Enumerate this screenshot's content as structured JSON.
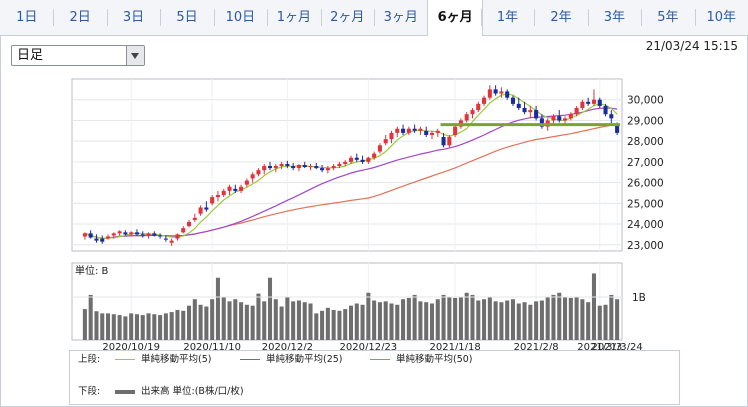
{
  "tabs": [
    "1日",
    "2日",
    "3日",
    "5日",
    "10日",
    "1ヶ月",
    "2ヶ月",
    "3ヶ月",
    "6ヶ月",
    "1年",
    "2年",
    "3年",
    "5年",
    "10年"
  ],
  "active_tab": "6ヶ月",
  "period_select": {
    "value": "日足"
  },
  "datetime": "21/03/24 15:15",
  "colors": {
    "up": "#e0333a",
    "down": "#1b2a9c",
    "ma5": "#9acc3a",
    "ma25": "#a046c8",
    "ma50": "#e3725b",
    "volume": "#6e6e6e",
    "hline": "#7aa52c"
  },
  "chart_data": {
    "type": "candlestick",
    "price_axis": {
      "ylim": [
        22700,
        31000
      ],
      "ticks": [
        "23,000",
        "24,000",
        "25,000",
        "26,000",
        "27,000",
        "28,000",
        "29,000",
        "30,000"
      ],
      "tick_values": [
        23000,
        24000,
        25000,
        26000,
        27000,
        28000,
        29000,
        30000
      ]
    },
    "volume_axis": {
      "label": "単位: B",
      "tick": "1B",
      "tick_value": 1
    },
    "x_labels": [
      "2020/10/19",
      "2020/11/10",
      "2020/12/2",
      "2020/12/23",
      "2021/1/18",
      "2021/2/8",
      "2021/3/3",
      "2021/3/24"
    ],
    "ohlc": [
      [
        23400,
        23600,
        23250,
        23550
      ],
      [
        23550,
        23700,
        23300,
        23350
      ],
      [
        23300,
        23500,
        23100,
        23200
      ],
      [
        23300,
        23450,
        23050,
        23150
      ],
      [
        23300,
        23500,
        23250,
        23400
      ],
      [
        23450,
        23600,
        23300,
        23550
      ],
      [
        23550,
        23700,
        23450,
        23650
      ],
      [
        23600,
        23700,
        23450,
        23500
      ],
      [
        23500,
        23650,
        23400,
        23600
      ],
      [
        23600,
        23750,
        23450,
        23500
      ],
      [
        23500,
        23650,
        23350,
        23450
      ],
      [
        23450,
        23600,
        23300,
        23550
      ],
      [
        23550,
        23650,
        23400,
        23450
      ],
      [
        23450,
        23550,
        23300,
        23400
      ],
      [
        23300,
        23450,
        23150,
        23250
      ],
      [
        23100,
        23300,
        22950,
        23200
      ],
      [
        23300,
        23550,
        23200,
        23500
      ],
      [
        23600,
        23900,
        23550,
        23800
      ],
      [
        23900,
        24200,
        23850,
        24100
      ],
      [
        24200,
        24500,
        24100,
        24300
      ],
      [
        24500,
        24900,
        24400,
        24800
      ],
      [
        24800,
        25100,
        24600,
        24700
      ],
      [
        25000,
        25400,
        24900,
        25300
      ],
      [
        25300,
        25600,
        25100,
        25400
      ],
      [
        25400,
        25700,
        25300,
        25600
      ],
      [
        25600,
        25900,
        25400,
        25800
      ],
      [
        25700,
        25900,
        25500,
        25600
      ],
      [
        25600,
        25900,
        25500,
        25800
      ],
      [
        25900,
        26200,
        25800,
        26100
      ],
      [
        26200,
        26500,
        26000,
        26400
      ],
      [
        26400,
        26700,
        26300,
        26600
      ],
      [
        26600,
        26900,
        26400,
        26800
      ],
      [
        26800,
        27000,
        26600,
        26700
      ],
      [
        26700,
        26900,
        26500,
        26800
      ],
      [
        26800,
        27000,
        26650,
        26900
      ],
      [
        26900,
        27050,
        26700,
        26800
      ],
      [
        26800,
        26950,
        26600,
        26700
      ],
      [
        26700,
        26900,
        26550,
        26850
      ],
      [
        26850,
        27000,
        26700,
        26750
      ],
      [
        26750,
        26900,
        26600,
        26800
      ],
      [
        26800,
        26950,
        26650,
        26700
      ],
      [
        26700,
        26850,
        26500,
        26600
      ],
      [
        26600,
        26800,
        26450,
        26700
      ],
      [
        26700,
        26900,
        26600,
        26800
      ],
      [
        26800,
        27000,
        26700,
        26900
      ],
      [
        26900,
        27100,
        26800,
        27000
      ],
      [
        27000,
        27300,
        26900,
        27200
      ],
      [
        27200,
        27400,
        27000,
        27100
      ],
      [
        27100,
        27300,
        26900,
        27000
      ],
      [
        27000,
        27250,
        26900,
        27200
      ],
      [
        27200,
        27500,
        27100,
        27400
      ],
      [
        27500,
        27900,
        27400,
        27800
      ],
      [
        27900,
        28300,
        27800,
        28100
      ],
      [
        28100,
        28500,
        27900,
        28400
      ],
      [
        28400,
        28700,
        28200,
        28600
      ],
      [
        28600,
        28800,
        28300,
        28400
      ],
      [
        28400,
        28700,
        28300,
        28600
      ],
      [
        28600,
        28800,
        28400,
        28500
      ],
      [
        28500,
        28700,
        28300,
        28600
      ],
      [
        28500,
        28700,
        28200,
        28300
      ],
      [
        28300,
        28500,
        28100,
        28400
      ],
      [
        28400,
        28600,
        28200,
        28500
      ],
      [
        28200,
        28400,
        27700,
        27800
      ],
      [
        27800,
        28300,
        27700,
        28200
      ],
      [
        28300,
        28800,
        28200,
        28700
      ],
      [
        28700,
        29100,
        28600,
        29000
      ],
      [
        29000,
        29400,
        28900,
        29300
      ],
      [
        29300,
        29600,
        29100,
        29500
      ],
      [
        29500,
        29900,
        29400,
        29800
      ],
      [
        29800,
        30200,
        29700,
        30100
      ],
      [
        30100,
        30700,
        30000,
        30500
      ],
      [
        30500,
        30700,
        30200,
        30300
      ],
      [
        30300,
        30600,
        30100,
        30400
      ],
      [
        30400,
        30500,
        30000,
        30100
      ],
      [
        30100,
        30200,
        29700,
        29800
      ],
      [
        29800,
        30100,
        29500,
        29600
      ],
      [
        29600,
        29900,
        29300,
        29400
      ],
      [
        29400,
        29700,
        29100,
        29500
      ],
      [
        29500,
        29700,
        29000,
        29100
      ],
      [
        29100,
        29300,
        28600,
        28700
      ],
      [
        28700,
        29100,
        28500,
        29000
      ],
      [
        29000,
        29300,
        28800,
        29200
      ],
      [
        29200,
        29500,
        28900,
        29000
      ],
      [
        29000,
        29200,
        28800,
        29100
      ],
      [
        29100,
        29400,
        29000,
        29300
      ],
      [
        29300,
        29700,
        29200,
        29600
      ],
      [
        29600,
        30000,
        29500,
        29900
      ],
      [
        29900,
        30100,
        29700,
        29800
      ],
      [
        29800,
        30500,
        29700,
        30000
      ],
      [
        30000,
        30100,
        29600,
        29700
      ],
      [
        29700,
        29800,
        29200,
        29300
      ],
      [
        29300,
        29500,
        28800,
        29100
      ],
      [
        28800,
        28900,
        28300,
        28400
      ]
    ],
    "volume": [
      0.72,
      1.05,
      0.67,
      0.62,
      0.62,
      0.6,
      0.58,
      0.55,
      0.62,
      0.6,
      0.58,
      0.62,
      0.6,
      0.58,
      0.62,
      0.65,
      0.7,
      0.68,
      0.8,
      0.95,
      0.82,
      0.78,
      0.95,
      1.45,
      1.0,
      0.9,
      0.95,
      0.88,
      0.82,
      0.8,
      1.08,
      0.9,
      1.45,
      0.95,
      0.78,
      1.0,
      0.9,
      0.92,
      0.88,
      0.85,
      0.62,
      0.68,
      0.75,
      0.7,
      0.68,
      0.72,
      0.8,
      0.85,
      0.82,
      1.1,
      0.92,
      0.88,
      0.9,
      0.85,
      0.82,
      0.95,
      0.98,
      1.05,
      0.9,
      0.88,
      0.85,
      0.95,
      1.05,
      1.0,
      0.98,
      1.0,
      1.1,
      1.05,
      0.92,
      0.95,
      1.0,
      0.9,
      0.88,
      0.92,
      0.95,
      0.85,
      0.88,
      0.82,
      0.9,
      0.92,
      1.0,
      1.05,
      1.1,
      1.0,
      0.98,
      1.0,
      0.95,
      0.88,
      1.55,
      0.8,
      0.82,
      1.05,
      0.95
    ],
    "support_line": 28800,
    "legend": {
      "upper_label": "上段:",
      "lower_label": "下段:",
      "items": [
        {
          "name": "単純移動平均(5)",
          "period": 5
        },
        {
          "name": "単純移動平均(25)",
          "period": 25
        },
        {
          "name": "単純移動平均(50)",
          "period": 50
        }
      ],
      "volume_item": "出来高 単位:(B株/口/枚)"
    }
  }
}
